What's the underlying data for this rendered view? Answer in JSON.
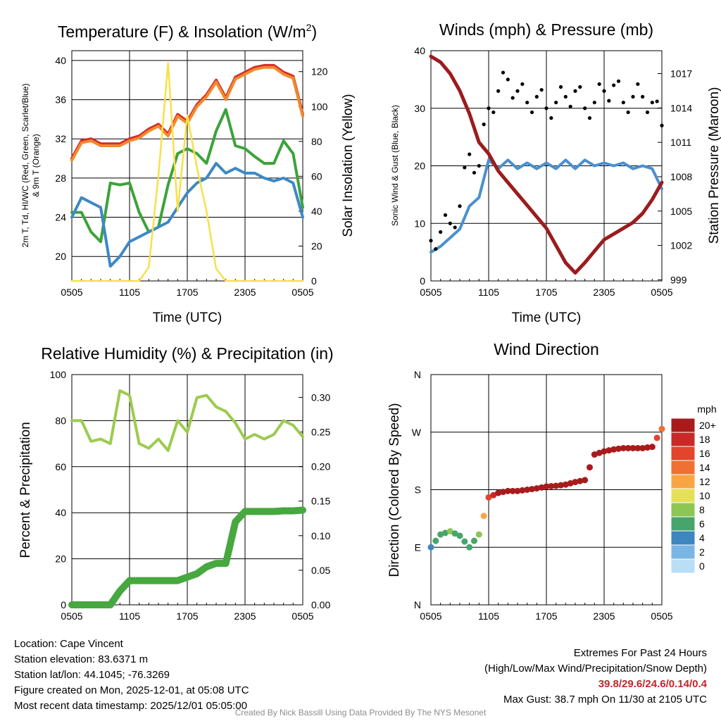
{
  "chart_data": [
    {
      "type": "line",
      "title": "Temperature (F) & Insolation (W/m²)",
      "xlabel": "Time (UTC)",
      "ylabel": "2m T, Td, HI/WC (Red, Green, Scarlet/Blue) & 9m T (Orange)",
      "ylabel_main": "2m T, Td, HI/WC (Red, Green, Scarlet/Blue)",
      "ylabel_sub": "& 9m T (Orange)",
      "y2label": "Solar Insolation (Yellow)",
      "x_ticks": [
        "0505",
        "1105",
        "1705",
        "2305",
        "0505"
      ],
      "ylim": [
        17.5,
        41
      ],
      "y_ticks": [
        20,
        24,
        28,
        32,
        36,
        40
      ],
      "y2lim": [
        0,
        132
      ],
      "y2_ticks": [
        0,
        20,
        40,
        60,
        80,
        100,
        120
      ],
      "x_hours": [
        0,
        1,
        2,
        3,
        4,
        5,
        6,
        7,
        8,
        9,
        10,
        11,
        12,
        13,
        14,
        15,
        16,
        17,
        18,
        19,
        20,
        21,
        22,
        23,
        24
      ],
      "series": [
        {
          "name": "2m T",
          "color": "#d62a27",
          "axis": "left",
          "values": [
            30,
            31.8,
            32,
            31.5,
            31.5,
            31.5,
            32,
            32.3,
            33,
            33.5,
            32.5,
            34.5,
            33.8,
            35.5,
            36.5,
            38,
            36.2,
            38.3,
            38.8,
            39.3,
            39.5,
            39.5,
            38.8,
            38.4,
            34.5
          ]
        },
        {
          "name": "9m T",
          "color": "#f08a2e",
          "axis": "left",
          "values": [
            29.8,
            31.6,
            31.8,
            31.3,
            31.3,
            31.3,
            31.8,
            32.1,
            32.8,
            33.3,
            32.3,
            34.3,
            33.6,
            35.3,
            36.3,
            37.8,
            36,
            38.1,
            38.6,
            39.1,
            39.3,
            39.3,
            38.6,
            38.2,
            34.3
          ]
        },
        {
          "name": "Dewpoint",
          "color": "#3ca33a",
          "axis": "left",
          "values": [
            24.5,
            24.5,
            22.5,
            21.5,
            27.5,
            27.3,
            27.5,
            24.5,
            22.5,
            23,
            27.3,
            30.5,
            31,
            30.5,
            29.5,
            32.8,
            35,
            31.3,
            31,
            30.2,
            29.5,
            29.5,
            31.8,
            30.5,
            25
          ]
        },
        {
          "name": "HI/WC",
          "color": "#3e88c4",
          "axis": "left",
          "values": [
            24,
            26,
            25.5,
            25,
            19,
            20,
            21.5,
            22,
            22.5,
            23,
            23.5,
            25,
            26.5,
            27.5,
            28,
            29.5,
            28.5,
            29,
            28.5,
            28.5,
            28,
            27.7,
            28,
            27.5,
            24
          ]
        },
        {
          "name": "Solar Insolation",
          "color": "#f7e04a",
          "axis": "right",
          "values": [
            0,
            0,
            0,
            0,
            0,
            0,
            0,
            0,
            8,
            60,
            125,
            40,
            95,
            65,
            40,
            7,
            0,
            0,
            0,
            0,
            0,
            0,
            0,
            0,
            0
          ]
        }
      ]
    },
    {
      "type": "line",
      "title": "Winds (mph) & Pressure (mb)",
      "xlabel": "Time (UTC)",
      "ylabel": "Sonic Wind & Gust (Blue, Black)",
      "y2label": "Station Pressure (Maroon)",
      "x_ticks": [
        "0505",
        "1105",
        "1705",
        "2305",
        "0505"
      ],
      "ylim": [
        0,
        40
      ],
      "y_ticks": [
        0,
        10,
        20,
        30,
        40
      ],
      "y2lim": [
        998.9,
        1019
      ],
      "y2_ticks": [
        999,
        1002,
        1005,
        1008,
        1011,
        1014,
        1017
      ],
      "x_hours": [
        0,
        1,
        2,
        3,
        4,
        5,
        6,
        7,
        8,
        9,
        10,
        11,
        12,
        13,
        14,
        15,
        16,
        17,
        18,
        19,
        20,
        21,
        22,
        23,
        24
      ],
      "series": [
        {
          "name": "Sonic Wind",
          "color": "#4a90d0",
          "axis": "left",
          "values": [
            5,
            6,
            7.5,
            9,
            13,
            14.5,
            21,
            19.5,
            21,
            19.5,
            20.5,
            19.5,
            20.5,
            19.5,
            21,
            19.5,
            21,
            20,
            20.5,
            20,
            20.5,
            19.5,
            20,
            19.5,
            16
          ]
        },
        {
          "name": "Station Pressure",
          "color": "#9c1c1e",
          "axis": "right",
          "values": [
            1018.5,
            1018,
            1017,
            1015.5,
            1013.5,
            1011,
            1010,
            1008.5,
            1007.5,
            1006.5,
            1005.5,
            1004.5,
            1003.5,
            1002,
            1000.5,
            999.6,
            1000.5,
            1001.5,
            1002.5,
            1003,
            1003.5,
            1004,
            1004.8,
            1006,
            1007.5
          ]
        },
        {
          "name": "Gust",
          "color": "#000000",
          "axis": "left",
          "style": "points",
          "values": [
            7,
            8.5,
            10,
            13,
            22,
            20,
            30,
            33,
            35,
            33,
            31,
            32,
            30,
            31,
            32,
            33,
            30,
            31,
            33,
            34,
            31,
            32,
            32,
            31,
            27
          ]
        }
      ]
    },
    {
      "type": "line",
      "title": "Relative Humidity (%) & Precipitation (in)",
      "ylabel": "Percent & Precipitation",
      "x_ticks": [
        "0505",
        "1105",
        "1705",
        "2305",
        "0505"
      ],
      "ylim": [
        0,
        100
      ],
      "y_ticks": [
        0,
        20,
        40,
        60,
        80,
        100
      ],
      "y2lim": [
        0,
        0.333
      ],
      "y2_ticks": [
        "0.00",
        "0.05",
        "0.10",
        "0.15",
        "0.20",
        "0.25",
        "0.30"
      ],
      "x_hours": [
        0,
        1,
        2,
        3,
        4,
        5,
        6,
        7,
        8,
        9,
        10,
        11,
        12,
        13,
        14,
        15,
        16,
        17,
        18,
        19,
        20,
        21,
        22,
        23,
        24
      ],
      "series": [
        {
          "name": "Relative Humidity",
          "color": "#9ccb4e",
          "axis": "left",
          "values": [
            80,
            80,
            71,
            72,
            70,
            93,
            91,
            70,
            68,
            72,
            67,
            80,
            75,
            90,
            91,
            86,
            84,
            79,
            72,
            74,
            72,
            74,
            80,
            78,
            73
          ]
        },
        {
          "name": "Precipitation",
          "color": "#46a83f",
          "axis": "right",
          "values": [
            0,
            0,
            0,
            0,
            0,
            0.02,
            0.035,
            0.035,
            0.035,
            0.035,
            0.035,
            0.035,
            0.04,
            0.045,
            0.055,
            0.06,
            0.06,
            0.12,
            0.135,
            0.135,
            0.135,
            0.135,
            0.136,
            0.136,
            0.137
          ]
        }
      ]
    },
    {
      "type": "scatter",
      "title": "Wind Direction",
      "ylabel": "Direction (Colored By Speed)",
      "x_ticks": [
        "0505",
        "1105",
        "1705",
        "2305",
        "0505"
      ],
      "y_ticks": [
        "N",
        "E",
        "S",
        "W",
        "N"
      ],
      "ylim": [
        0,
        360
      ],
      "x_hours": [
        0,
        1,
        2,
        3,
        4,
        5,
        6,
        7,
        8,
        9,
        10,
        11,
        12,
        13,
        14,
        15,
        16,
        17,
        18,
        19,
        20,
        21,
        22,
        23,
        24
      ],
      "direction_deg": [
        90,
        110,
        115,
        108,
        90,
        110,
        168,
        175,
        178,
        178,
        180,
        182,
        185,
        186,
        188,
        192,
        195,
        235,
        240,
        243,
        245,
        245,
        245,
        247,
        275
      ],
      "speed_mph": [
        4,
        6,
        7,
        6,
        5,
        8,
        16,
        20,
        20,
        20,
        20,
        20,
        20,
        20,
        20,
        20,
        20,
        20,
        20,
        20,
        20,
        20,
        20,
        19,
        14
      ],
      "legend": {
        "title": "mph",
        "labels": [
          "20+",
          "18",
          "16",
          "14",
          "12",
          "10",
          "8",
          "6",
          "4",
          "2",
          "0"
        ],
        "colors": [
          "#a81b1c",
          "#c92a27",
          "#e4432c",
          "#f06f33",
          "#f8a645",
          "#e5e05a",
          "#8dc653",
          "#47a56b",
          "#3d86c0",
          "#7ab6e3",
          "#b9def6"
        ]
      }
    }
  ],
  "info": {
    "location": "Location: Cape Vincent",
    "elevation": "Station elevation: 83.6371 m",
    "latlon": "Station lat/lon: 44.1045; -76.3269",
    "created": "Figure created on Mon, 2025-12-01, at 05:08 UTC",
    "recent": "Most recent data timestamp: 2025/12/01 05:05:00"
  },
  "extremes": {
    "title": "Extremes For Past 24 Hours",
    "subtitle": "(High/Low/Max Wind/Precipitation/Snow Depth)",
    "values": "39.8/29.6/24.6/0.14/0.4",
    "max_gust": "Max Gust: 38.7 mph On 11/30 at 2105 UTC"
  },
  "credit": "Created By Nick Bassill Using Data Provided By The NYS Mesonet"
}
